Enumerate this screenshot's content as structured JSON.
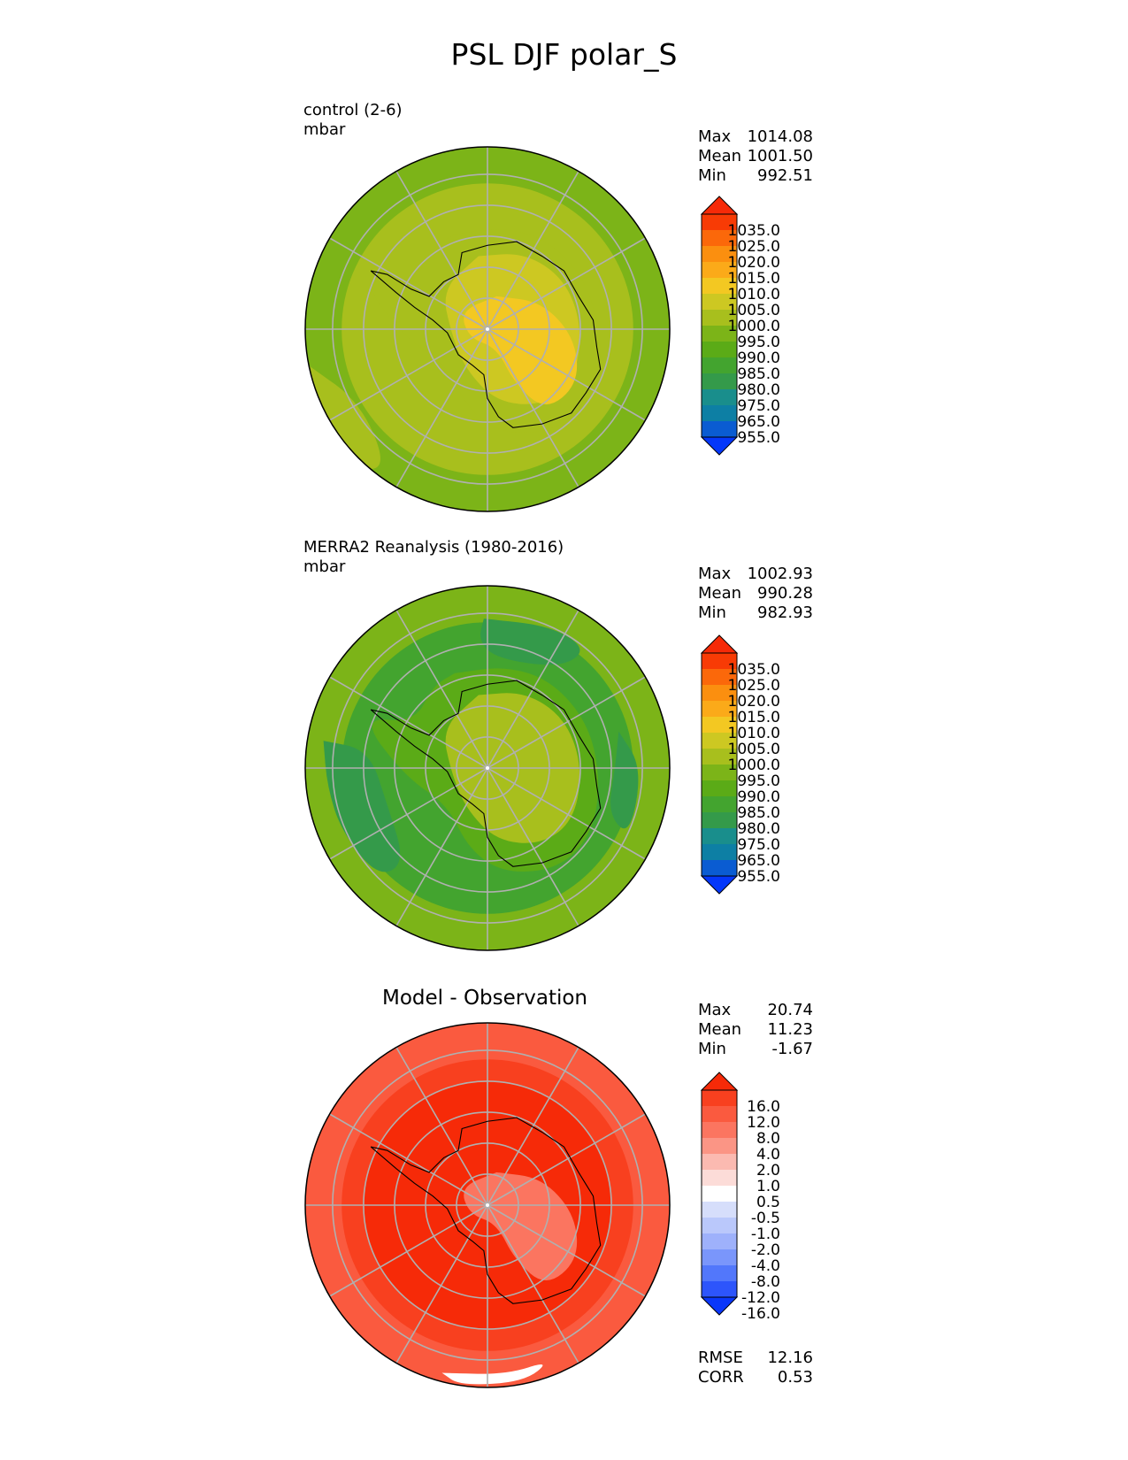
{
  "title": "PSL DJF polar_S",
  "colors": {
    "abs_levels": [
      "#0437fa",
      "#0a5cd2",
      "#0d7fa4",
      "#198e8c",
      "#349a4a",
      "#43a42f",
      "#5bab17",
      "#7cb418",
      "#a8bf1d",
      "#cdc822",
      "#f3c822",
      "#fbaa19",
      "#fb8f0f",
      "#fb680a",
      "#f83b05",
      "#f62a08"
    ],
    "diff_levels": [
      "#0a37fa",
      "#2d55fb",
      "#5277fb",
      "#7a96fb",
      "#9eb1fb",
      "#bac8fb",
      "#d6defb",
      "#ffffff",
      "#fcdcd8",
      "#fbbab1",
      "#fb9585",
      "#fb7560",
      "#fa5a3f",
      "#f8401f",
      "#f62a08"
    ],
    "land_outline": "#000000",
    "grid": "#b0b0b0"
  },
  "panels": [
    {
      "id": "control",
      "label_lines": [
        "control (2-6)",
        "mbar"
      ],
      "stats": [
        {
          "name": "Max",
          "value": "1014.08"
        },
        {
          "name": "Mean",
          "value": "1001.50"
        },
        {
          "name": "Min",
          "value": "992.51"
        }
      ]
    },
    {
      "id": "obs",
      "label_lines": [
        "MERRA2 Reanalysis (1980-2016)",
        "mbar"
      ],
      "stats": [
        {
          "name": "Max",
          "value": "1002.93"
        },
        {
          "name": "Mean",
          "value": "990.28"
        },
        {
          "name": "Min",
          "value": "982.93"
        }
      ]
    },
    {
      "id": "diff",
      "title": "Model - Observation",
      "stats": [
        {
          "name": "Max",
          "value": "20.74"
        },
        {
          "name": "Mean",
          "value": "11.23"
        },
        {
          "name": "Min",
          "value": "-1.67"
        }
      ],
      "metrics": [
        {
          "name": "RMSE",
          "value": "12.16"
        },
        {
          "name": "CORR",
          "value": "0.53"
        }
      ]
    }
  ],
  "colorbars": {
    "abs_ticks": [
      "1035.0",
      "1025.0",
      "1020.0",
      "1015.0",
      "1010.0",
      "1005.0",
      "1000.0",
      "995.0",
      "990.0",
      "985.0",
      "980.0",
      "975.0",
      "965.0",
      "955.0"
    ],
    "diff_ticks": [
      "16.0",
      "12.0",
      "8.0",
      "4.0",
      "2.0",
      "1.0",
      "0.5",
      "-0.5",
      "-1.0",
      "-2.0",
      "-4.0",
      "-8.0",
      "-12.0",
      "-16.0"
    ]
  },
  "chart_data": [
    {
      "type": "heatmap",
      "projection": "south polar stereographic",
      "variable": "PSL",
      "season": "DJF",
      "region": "polar_S",
      "title": "control (2-6)",
      "units": "mbar",
      "levels": [
        955,
        965,
        975,
        980,
        985,
        990,
        995,
        1000,
        1005,
        1010,
        1015,
        1020,
        1025,
        1035
      ],
      "extend": "both",
      "field_regions": [
        {
          "region": "outer ocean ring",
          "value": 997
        },
        {
          "region": "coastal belt",
          "value": 1004
        },
        {
          "region": "East Antarctic interior",
          "value": 1008
        },
        {
          "region": "high plateau",
          "value": 1012
        },
        {
          "region": "Atlantic sector mid-latitudes",
          "value": 1003
        }
      ],
      "max": 1014.08,
      "mean": 1001.5,
      "min": 992.51
    },
    {
      "type": "heatmap",
      "projection": "south polar stereographic",
      "variable": "PSL",
      "season": "DJF",
      "region": "polar_S",
      "title": "MERRA2 Reanalysis (1980-2016)",
      "units": "mbar",
      "levels": [
        955,
        965,
        975,
        980,
        985,
        990,
        995,
        1000,
        1005,
        1010,
        1015,
        1020,
        1025,
        1035
      ],
      "extend": "both",
      "field_regions": [
        {
          "region": "outer ring",
          "value": 997
        },
        {
          "region": "circumpolar trough",
          "value": 988
        },
        {
          "region": "deep trough patches",
          "value": 984
        },
        {
          "region": "West Antarctica",
          "value": 991
        },
        {
          "region": "East Antarctic plateau",
          "value": 1001
        }
      ],
      "max": 1002.93,
      "mean": 990.28,
      "min": 982.93
    },
    {
      "type": "heatmap",
      "projection": "south polar stereographic",
      "title": "Model - Observation",
      "units": "mbar",
      "levels": [
        -16,
        -12,
        -8,
        -4,
        -2,
        -1,
        -0.5,
        0.5,
        1,
        2,
        4,
        8,
        12,
        16
      ],
      "extend": "both",
      "field_regions": [
        {
          "region": "outer ring",
          "value": 8
        },
        {
          "region": "mid-latitude ocean",
          "value": 12
        },
        {
          "region": "circumpolar trough band",
          "value": 16
        },
        {
          "region": "East Antarctic plateau",
          "value": 6
        },
        {
          "region": "Atlantic sector edge",
          "value": -0.5
        }
      ],
      "max": 20.74,
      "mean": 11.23,
      "min": -1.67,
      "rmse": 12.16,
      "corr": 0.53
    }
  ]
}
